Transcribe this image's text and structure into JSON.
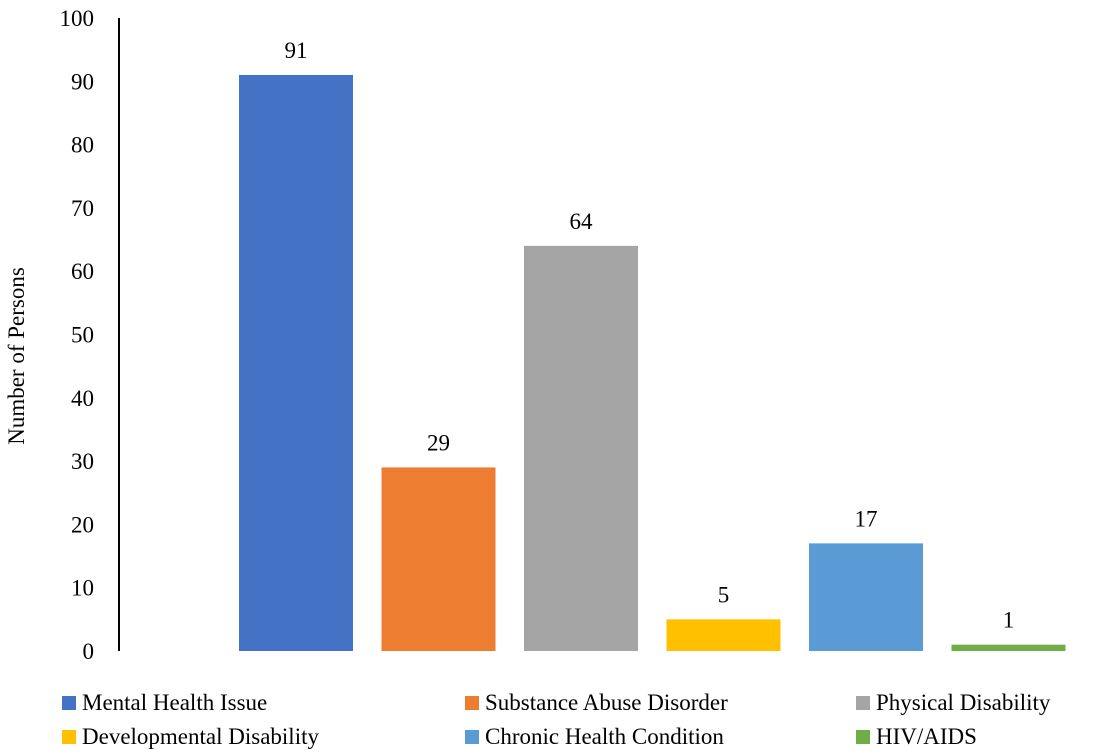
{
  "chart_data": {
    "type": "bar",
    "title": "",
    "xlabel": "",
    "ylabel": "Number of Persons",
    "ylim": [
      0,
      100
    ],
    "yticks": [
      0,
      10,
      20,
      30,
      40,
      50,
      60,
      70,
      80,
      90,
      100
    ],
    "grid": false,
    "legend_position": "bottom",
    "categories": [
      "Mental Health Issue",
      "Substance Abuse Disorder",
      "Physical Disability",
      "Developmental Disability",
      "Chronic Health Condition",
      "HIV/AIDS"
    ],
    "values": [
      91,
      29,
      64,
      5,
      17,
      1
    ],
    "colors": [
      "#4472C4",
      "#ED7D31",
      "#A5A5A5",
      "#FFC000",
      "#5B9BD5",
      "#70AD47"
    ],
    "data_labels": [
      "91",
      "29",
      "64",
      "5",
      "17",
      "1"
    ]
  }
}
